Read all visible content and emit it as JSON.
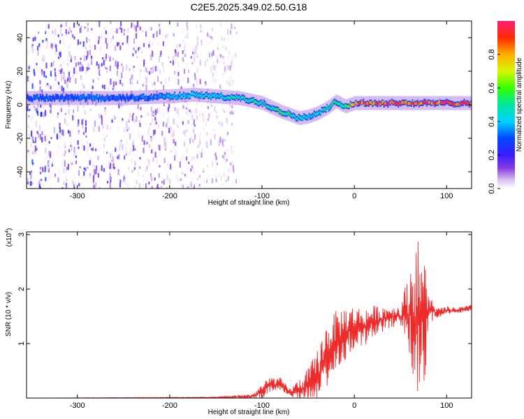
{
  "figure_title": "C2E5.2025.349.02.50.G18",
  "chart_data": [
    {
      "type": "heatmap",
      "panel": "spectrogram",
      "xlabel": "Height of straight line (km)",
      "ylabel": "Frequency (Hz)",
      "xlim": [
        -355,
        127
      ],
      "ylim": [
        -50,
        50
      ],
      "xticks": [
        -300,
        -200,
        -100,
        0,
        100
      ],
      "yticks": [
        -40,
        -20,
        0,
        20,
        40
      ],
      "colorbar": {
        "label": "Normalized spectral amplitude",
        "range": [
          0,
          1
        ],
        "ticks": [
          0.0,
          0.2,
          0.4,
          0.6,
          0.8
        ],
        "tick_labels": [
          "0.0",
          "0.2",
          "0.4",
          "0.6",
          "0.8"
        ],
        "colormap": "rainbow (white-purple-blue-cyan-green-yellow-red-magenta)"
      },
      "signal_track": {
        "heights_km": [
          -355,
          -300,
          -250,
          -200,
          -175,
          -150,
          -125,
          -100,
          -80,
          -60,
          -50,
          -40,
          -30,
          -20,
          -10,
          0,
          50,
          127
        ],
        "frequency_hz": [
          4,
          4,
          4,
          5,
          6,
          5,
          4,
          1,
          -4,
          -8,
          -7,
          -5,
          -2,
          2,
          -1,
          1,
          1,
          1
        ],
        "amplitude": [
          0.3,
          0.35,
          0.3,
          0.4,
          0.45,
          0.45,
          0.5,
          0.5,
          0.55,
          0.5,
          0.45,
          0.45,
          0.5,
          0.5,
          0.5,
          0.95,
          0.95,
          0.95
        ]
      },
      "noise_extent_km": [
        -355,
        -128
      ]
    },
    {
      "type": "line",
      "panel": "snr",
      "xlabel": "Height of straight line (km)",
      "ylabel": "SNR (10 * v/v)",
      "scale_label_base": "(x10",
      "scale_label_exp": "4",
      "scale_label_close": ")",
      "xlim": [
        -355,
        127
      ],
      "ylim": [
        0,
        3.05
      ],
      "xticks": [
        -300,
        -200,
        -100,
        0,
        100
      ],
      "yticks": [
        1,
        2,
        3
      ],
      "series": [
        {
          "name": "SNR",
          "color": "#ee2b2b",
          "x": [
            -355,
            -150,
            -110,
            -100,
            -90,
            -80,
            -70,
            -60,
            -50,
            -40,
            -30,
            -20,
            -10,
            0,
            10,
            20,
            30,
            40,
            50,
            55,
            60,
            65,
            70,
            75,
            80,
            85,
            90,
            100,
            110,
            120,
            127
          ],
          "y": [
            0.0,
            0.01,
            0.03,
            0.12,
            0.25,
            0.25,
            0.1,
            0.15,
            0.2,
            0.4,
            0.8,
            1.05,
            1.2,
            1.3,
            1.3,
            1.4,
            1.45,
            1.5,
            1.5,
            1.55,
            1.55,
            1.5,
            1.45,
            1.4,
            1.6,
            1.6,
            1.55,
            1.6,
            1.6,
            1.63,
            1.65
          ],
          "spread": [
            0.0,
            0.01,
            0.05,
            0.15,
            0.15,
            0.12,
            0.08,
            0.2,
            0.35,
            0.5,
            0.6,
            0.55,
            0.5,
            0.4,
            0.35,
            0.3,
            0.25,
            0.2,
            0.2,
            0.5,
            0.9,
            1.3,
            1.5,
            1.3,
            0.5,
            0.15,
            0.1,
            0.08,
            0.06,
            0.06,
            0.06
          ]
        }
      ]
    }
  ]
}
